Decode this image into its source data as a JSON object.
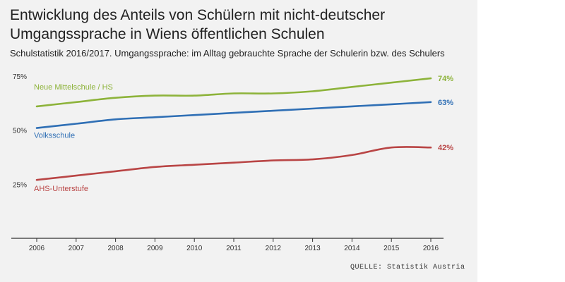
{
  "title": "Entwicklung des Anteils von Schülern mit nicht-deutscher Umgangssprache in Wiens öffentlichen Schulen",
  "subtitle": "Schulstatistik 2016/2017. Umgangssprache: im Alltag gebrauchte Sprache der Schulerin bzw. des Schulers",
  "source": "QUELLE: Statistik Austria",
  "colors": {
    "background": "#f2f2f2",
    "axis": "#333333"
  },
  "chart_data": {
    "type": "line",
    "x": [
      2006,
      2007,
      2008,
      2009,
      2010,
      2011,
      2012,
      2013,
      2014,
      2015,
      2016
    ],
    "x_tick_labels": [
      "2006",
      "2007",
      "2008",
      "2009",
      "2010",
      "2011",
      "2012",
      "2013",
      "2014",
      "2015",
      "2016"
    ],
    "y_ticks": [
      25,
      50,
      75
    ],
    "y_tick_labels": [
      "25%",
      "50%",
      "75%"
    ],
    "ylim": [
      0,
      75
    ],
    "grid": false,
    "series": [
      {
        "name": "Neue Mittelschule / HS",
        "color": "#8db33a",
        "values": [
          61,
          63,
          65,
          66,
          66,
          67,
          67,
          68,
          70,
          72,
          74
        ],
        "end_label": "74%"
      },
      {
        "name": "Volksschule",
        "color": "#2f6fb5",
        "values": [
          51,
          53,
          55,
          56,
          57,
          58,
          59,
          60,
          61,
          62,
          63
        ],
        "end_label": "63%"
      },
      {
        "name": "AHS-Unterstufe",
        "color": "#b94545",
        "values": [
          27,
          29,
          31,
          33,
          34,
          35,
          36,
          36.5,
          38.5,
          42,
          42
        ],
        "end_label": "42%"
      }
    ]
  }
}
